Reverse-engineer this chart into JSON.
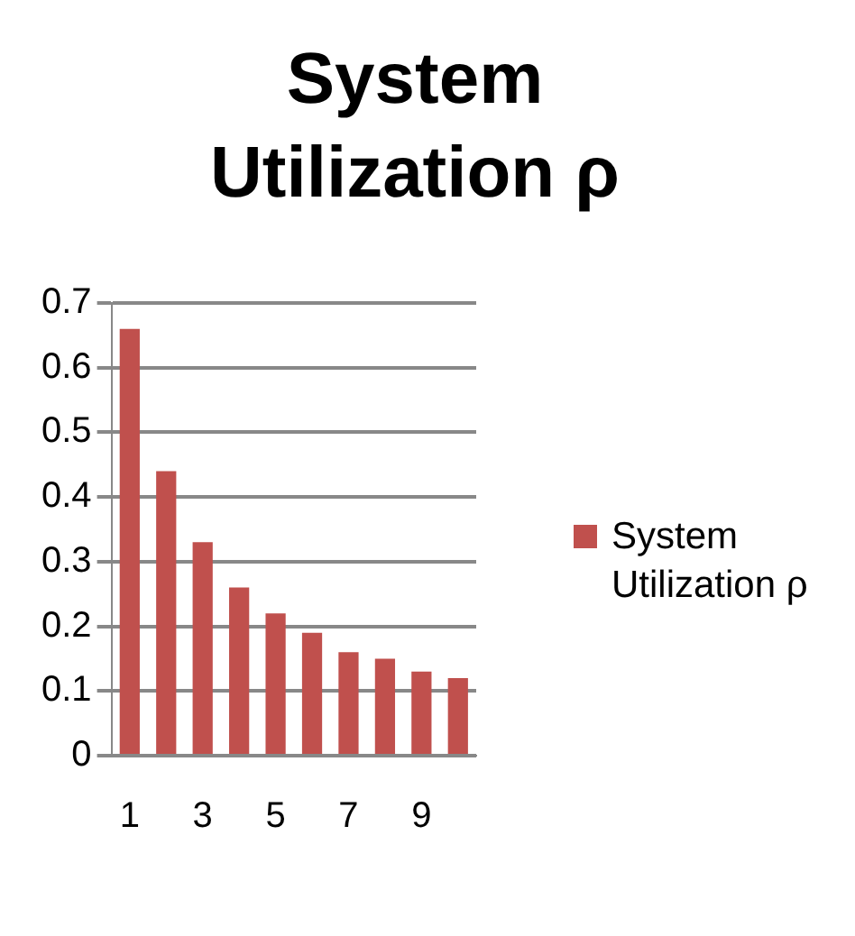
{
  "chart_data": {
    "type": "bar",
    "title": "System Utilization ρ",
    "categories": [
      "1",
      null,
      "3",
      null,
      "5",
      null,
      "7",
      null,
      "9",
      null
    ],
    "series": [
      {
        "name": "System Utilization ρ",
        "color": "#c0504d",
        "values": [
          0.66,
          0.44,
          0.33,
          0.26,
          0.22,
          0.19,
          0.16,
          0.15,
          0.13,
          0.12
        ]
      }
    ],
    "ylim": [
      0,
      0.7
    ],
    "yticks": [
      0,
      0.1,
      0.2,
      0.3,
      0.4,
      0.5,
      0.6,
      0.7
    ],
    "grid": "y",
    "legend": "right"
  }
}
